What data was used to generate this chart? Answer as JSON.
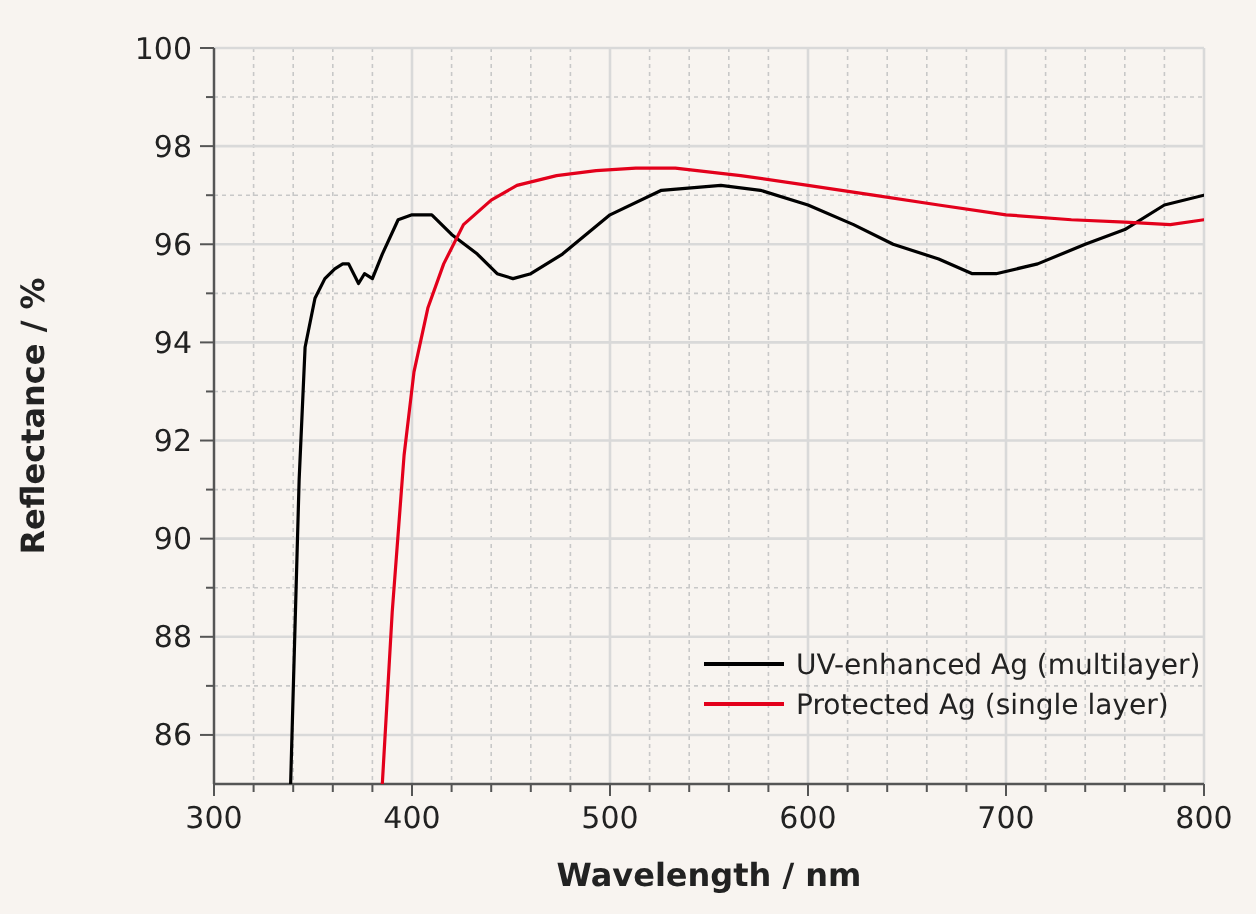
{
  "chart_data": {
    "type": "line",
    "xlabel": "Wavelength / nm",
    "ylabel": "Reflectance / %",
    "xlim": [
      300,
      800
    ],
    "ylim": [
      85,
      100
    ],
    "xticks": [
      300,
      {
        "value": 320,
        "label": null
      },
      {
        "value": 340,
        "label": null
      },
      {
        "value": 360,
        "label": null
      },
      {
        "value": 380,
        "label": null
      },
      400,
      {
        "value": 420,
        "label": null
      },
      {
        "value": 440,
        "label": null
      },
      {
        "value": 460,
        "label": null
      },
      {
        "value": 480,
        "label": null
      },
      500,
      {
        "value": 520,
        "label": null
      },
      {
        "value": 540,
        "label": null
      },
      {
        "value": 560,
        "label": null
      },
      {
        "value": 580,
        "label": null
      },
      600,
      {
        "value": 620,
        "label": null
      },
      {
        "value": 640,
        "label": null
      },
      {
        "value": 660,
        "label": null
      },
      {
        "value": 680,
        "label": null
      },
      700,
      {
        "value": 720,
        "label": null
      },
      {
        "value": 740,
        "label": null
      },
      {
        "value": 760,
        "label": null
      },
      {
        "value": 780,
        "label": null
      },
      800
    ],
    "yticks": [
      86,
      {
        "value": 87,
        "label": null
      },
      88,
      {
        "value": 89,
        "label": null
      },
      90,
      {
        "value": 91,
        "label": null
      },
      92,
      {
        "value": 93,
        "label": null
      },
      94,
      {
        "value": 95,
        "label": null
      },
      96,
      {
        "value": 97,
        "label": null
      },
      98,
      {
        "value": 99,
        "label": null
      },
      100
    ],
    "grid": true,
    "legend": "bottom right",
    "line_style": "solid",
    "marker": "none",
    "series": [
      {
        "name": "UV-enhanced Ag (multilayer)",
        "color": "#000000",
        "x": [
          338.7,
          343,
          346,
          351,
          356,
          361,
          365,
          368,
          373,
          376,
          380,
          385,
          393,
          400,
          410,
          420,
          433,
          443,
          451,
          460,
          476,
          500,
          526,
          556,
          576,
          600,
          623,
          643,
          666,
          683,
          695,
          716,
          740,
          760,
          780,
          800
        ],
        "values": [
          85,
          91.2,
          93.9,
          94.9,
          95.3,
          95.5,
          95.6,
          95.6,
          95.2,
          95.4,
          95.3,
          95.8,
          96.5,
          96.6,
          96.6,
          96.2,
          95.8,
          95.4,
          95.3,
          95.4,
          95.8,
          96.6,
          97.1,
          97.2,
          97.1,
          96.8,
          96.4,
          96.0,
          95.7,
          95.4,
          95.4,
          95.6,
          96.0,
          96.3,
          96.8,
          97.0
        ]
      },
      {
        "name": "Protected Ag (single layer)",
        "color": "#e3001b",
        "x": [
          385,
          390,
          396,
          401,
          408,
          416,
          426,
          440,
          453,
          473,
          493,
          513,
          533,
          566,
          600,
          633,
          666,
          700,
          733,
          760,
          783,
          800
        ],
        "values": [
          85,
          88.5,
          91.7,
          93.4,
          94.7,
          95.6,
          96.4,
          96.9,
          97.2,
          97.4,
          97.5,
          97.55,
          97.55,
          97.4,
          97.2,
          97.0,
          96.8,
          96.6,
          96.5,
          96.45,
          96.4,
          96.5
        ]
      }
    ]
  }
}
